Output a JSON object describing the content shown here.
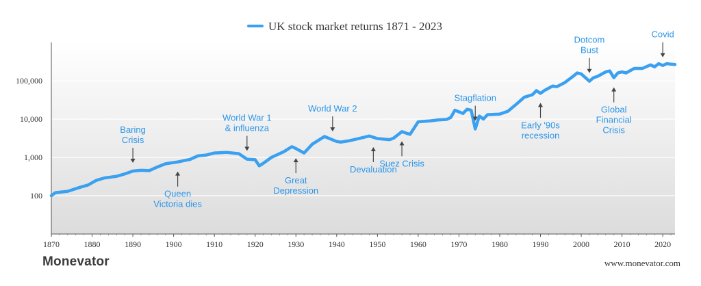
{
  "chart_data": {
    "type": "line",
    "title": "UK stock market returns 1871 - 2023",
    "series": [
      {
        "name": "UK stock market returns 1871 - 2023",
        "color": "#3aa0f0",
        "points": [
          [
            1870,
            100
          ],
          [
            1871,
            120
          ],
          [
            1874,
            130
          ],
          [
            1877,
            165
          ],
          [
            1879,
            190
          ],
          [
            1881,
            250
          ],
          [
            1883,
            290
          ],
          [
            1886,
            320
          ],
          [
            1888,
            370
          ],
          [
            1890,
            440
          ],
          [
            1892,
            460
          ],
          [
            1894,
            450
          ],
          [
            1896,
            560
          ],
          [
            1898,
            680
          ],
          [
            1901,
            760
          ],
          [
            1903,
            840
          ],
          [
            1904,
            880
          ],
          [
            1906,
            1100
          ],
          [
            1908,
            1150
          ],
          [
            1910,
            1300
          ],
          [
            1913,
            1350
          ],
          [
            1916,
            1250
          ],
          [
            1918,
            900
          ],
          [
            1920,
            870
          ],
          [
            1921,
            600
          ],
          [
            1922,
            700
          ],
          [
            1924,
            1000
          ],
          [
            1927,
            1400
          ],
          [
            1929,
            1900
          ],
          [
            1930,
            1700
          ],
          [
            1932,
            1300
          ],
          [
            1934,
            2200
          ],
          [
            1937,
            3500
          ],
          [
            1940,
            2600
          ],
          [
            1941,
            2500
          ],
          [
            1943,
            2700
          ],
          [
            1946,
            3200
          ],
          [
            1948,
            3600
          ],
          [
            1950,
            3100
          ],
          [
            1953,
            2900
          ],
          [
            1954,
            3200
          ],
          [
            1956,
            4700
          ],
          [
            1957,
            4300
          ],
          [
            1958,
            4000
          ],
          [
            1960,
            8500
          ],
          [
            1963,
            9000
          ],
          [
            1965,
            9500
          ],
          [
            1967,
            9800
          ],
          [
            1968,
            11000
          ],
          [
            1969,
            17000
          ],
          [
            1971,
            14000
          ],
          [
            1972,
            18000
          ],
          [
            1973,
            17000
          ],
          [
            1974,
            5500
          ],
          [
            1975,
            12000
          ],
          [
            1976,
            10000
          ],
          [
            1977,
            13000
          ],
          [
            1980,
            13500
          ],
          [
            1982,
            16000
          ],
          [
            1984,
            24000
          ],
          [
            1986,
            37000
          ],
          [
            1987,
            40000
          ],
          [
            1988,
            43000
          ],
          [
            1989,
            55000
          ],
          [
            1990,
            47000
          ],
          [
            1991,
            56000
          ],
          [
            1993,
            73000
          ],
          [
            1994,
            70000
          ],
          [
            1996,
            90000
          ],
          [
            1998,
            130000
          ],
          [
            1999,
            160000
          ],
          [
            2000,
            150000
          ],
          [
            2002,
            97000
          ],
          [
            2003,
            120000
          ],
          [
            2004,
            130000
          ],
          [
            2006,
            170000
          ],
          [
            2007,
            180000
          ],
          [
            2008,
            120000
          ],
          [
            2009,
            160000
          ],
          [
            2010,
            170000
          ],
          [
            2011,
            160000
          ],
          [
            2013,
            210000
          ],
          [
            2015,
            210000
          ],
          [
            2017,
            260000
          ],
          [
            2018,
            230000
          ],
          [
            2019,
            280000
          ],
          [
            2020,
            250000
          ],
          [
            2021,
            280000
          ],
          [
            2022,
            270000
          ],
          [
            2023,
            265000
          ]
        ]
      }
    ],
    "x_range": [
      1870,
      2023
    ],
    "y_range": [
      10,
      1000000
    ],
    "y_scale": "log",
    "y_ticks": [
      {
        "value": 100,
        "label": "100"
      },
      {
        "value": 1000,
        "label": "1,000"
      },
      {
        "value": 10000,
        "label": "10,000"
      },
      {
        "value": 100000,
        "label": "100,000"
      }
    ],
    "x_ticks": [
      {
        "value": 1870,
        "label": "1870"
      },
      {
        "value": 1880,
        "label": "1880"
      },
      {
        "value": 1890,
        "label": "1890"
      },
      {
        "value": 1900,
        "label": "1900"
      },
      {
        "value": 1910,
        "label": "1910"
      },
      {
        "value": 1920,
        "label": "1920"
      },
      {
        "value": 1930,
        "label": "1930"
      },
      {
        "value": 1940,
        "label": "1940"
      },
      {
        "value": 1950,
        "label": "1950"
      },
      {
        "value": 1960,
        "label": "1960"
      },
      {
        "value": 1970,
        "label": "1970"
      },
      {
        "value": 1980,
        "label": "1980"
      },
      {
        "value": 1990,
        "label": "1990"
      },
      {
        "value": 2000,
        "label": "2000"
      },
      {
        "value": 2010,
        "label": "2010"
      },
      {
        "value": 2020,
        "label": "2020"
      }
    ],
    "grid": true,
    "legend_placement": "top-center",
    "annotations": [
      {
        "lines": [
          "Baring",
          "Crisis"
        ],
        "year": 1890,
        "value": 440,
        "side": "above"
      },
      {
        "lines": [
          "Queen",
          "Victoria dies"
        ],
        "year": 1901,
        "value": 760,
        "side": "below"
      },
      {
        "lines": [
          "World War 1",
          "& influenza"
        ],
        "year": 1918,
        "value": 900,
        "side": "above"
      },
      {
        "lines": [
          "Great",
          "Depression"
        ],
        "year": 1930,
        "value": 1700,
        "side": "below"
      },
      {
        "lines": [
          "World War 2"
        ],
        "year": 1939,
        "value": 2900,
        "side": "above"
      },
      {
        "lines": [
          "Devaluation"
        ],
        "year": 1949,
        "value": 3300,
        "side": "below"
      },
      {
        "lines": [
          "Suez Crisis"
        ],
        "year": 1956,
        "value": 4700,
        "side": "below"
      },
      {
        "lines": [
          "Stagflation"
        ],
        "year": 1974,
        "value": 5500,
        "side": "above"
      },
      {
        "lines": [
          "Early '90s",
          "recession"
        ],
        "year": 1990,
        "value": 47000,
        "side": "below"
      },
      {
        "lines": [
          "Dotcom",
          "Bust"
        ],
        "year": 2002,
        "value": 97000,
        "side": "above"
      },
      {
        "lines": [
          "Global",
          "Financial",
          "Crisis"
        ],
        "year": 2008,
        "value": 120000,
        "side": "below"
      },
      {
        "lines": [
          "Covid"
        ],
        "year": 2020,
        "value": 250000,
        "side": "above"
      }
    ]
  },
  "footer": {
    "brand": "Monevator",
    "website": "www.monevator.com"
  }
}
